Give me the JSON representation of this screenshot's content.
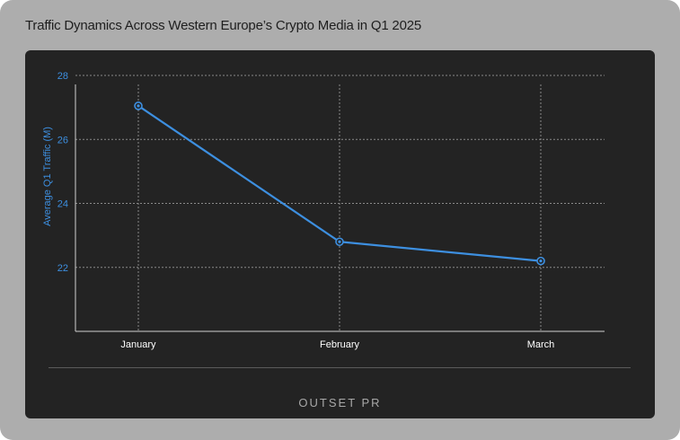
{
  "title": "Traffic Dynamics Across Western Europe’s Crypto Media in Q1 2025",
  "brand": "OUTSET PR",
  "colors": {
    "frame": "#adadad",
    "panel": "#232323",
    "line": "#3d8fe0",
    "axis_text": "#3d8fe0",
    "category_text": "#ffffff",
    "grid": "#8a8a8a"
  },
  "chart_data": {
    "type": "line",
    "title": "",
    "xlabel": "",
    "ylabel": "Average Q1 Traffic (M)",
    "categories": [
      "January",
      "February",
      "March"
    ],
    "series": [
      {
        "values": [
          27.05,
          22.8,
          22.2
        ]
      }
    ],
    "ylim": [
      20,
      28
    ],
    "yticks": [
      22,
      24,
      26,
      28
    ],
    "grid": true,
    "legend": "none"
  }
}
